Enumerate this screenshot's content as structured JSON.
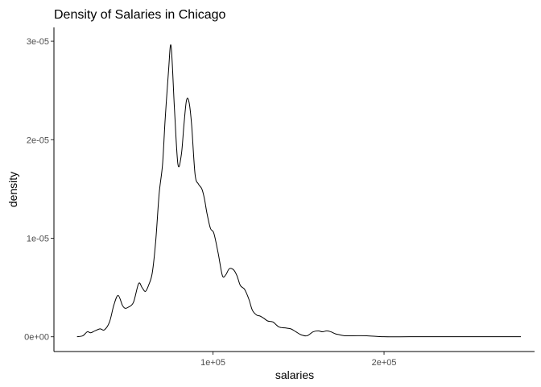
{
  "chart_data": {
    "type": "line",
    "title": "Density of Salaries in Chicago",
    "xlabel": "salaries",
    "ylabel": "density",
    "xlim": [
      7000,
      288000
    ],
    "ylim": [
      -1.5e-06,
      3.14e-05
    ],
    "grid": false,
    "x_ticks": [
      {
        "value": 100000,
        "label": "1e+05"
      },
      {
        "value": 200000,
        "label": "2e+05"
      }
    ],
    "y_ticks": [
      {
        "value": 0,
        "label": "0e+00"
      },
      {
        "value": 1e-05,
        "label": "1e-05"
      },
      {
        "value": 2e-05,
        "label": "2e-05"
      },
      {
        "value": 3e-05,
        "label": "3e-05"
      }
    ],
    "series": [
      {
        "x": [
          20500,
          23900,
          26500,
          28500,
          31000,
          34000,
          36500,
          39500,
          42000,
          44500,
          47000,
          48500,
          50500,
          53500,
          56500,
          58500,
          60500,
          62500,
          64500,
          66500,
          68500,
          70500,
          72000,
          74000,
          75500,
          77500,
          79500,
          81500,
          83000,
          84500,
          86000,
          87500,
          89500,
          91500,
          93500,
          95000,
          96500,
          98500,
          100500,
          103000,
          105500,
          107500,
          109500,
          112000,
          114000,
          116000,
          118500,
          121000,
          123000,
          125500,
          127500,
          129500,
          132000,
          135000,
          138500,
          142000,
          145500,
          148500,
          151500,
          155000,
          158500,
          161500,
          164000,
          166500,
          169000,
          171500,
          174000,
          177000,
          182000,
          190000,
          200000,
          215000,
          235000,
          260000,
          280000
        ],
        "y": [
          0,
          1e-07,
          5e-07,
          4e-07,
          6e-07,
          8e-07,
          7e-07,
          1.5e-06,
          3.2e-06,
          4.2e-06,
          3.2e-06,
          2.9e-06,
          3e-06,
          3.5e-06,
          5.4e-06,
          5e-06,
          4.6e-06,
          5.3e-06,
          6.5e-06,
          9.7e-06,
          1.45e-05,
          1.75e-05,
          2.2e-05,
          2.7e-05,
          2.95e-05,
          2.3e-05,
          1.75e-05,
          1.85e-05,
          2.15e-05,
          2.4e-05,
          2.38e-05,
          2.15e-05,
          1.65e-05,
          1.55e-05,
          1.5e-05,
          1.4e-05,
          1.25e-05,
          1.1e-05,
          1.05e-05,
          8.5e-06,
          6.2e-06,
          6.3e-06,
          6.9e-06,
          6.8e-06,
          6.2e-06,
          5.2e-06,
          4.8e-06,
          3.8e-06,
          2.7e-06,
          2.2e-06,
          2.1e-06,
          1.9e-06,
          1.6e-06,
          1.5e-06,
          1e-06,
          9e-07,
          8e-07,
          5e-07,
          2e-07,
          1e-07,
          5e-07,
          6e-07,
          5e-07,
          6e-07,
          5e-07,
          3e-07,
          2e-07,
          1e-07,
          1e-07,
          1e-07,
          0,
          0,
          0,
          0,
          0
        ]
      }
    ]
  }
}
